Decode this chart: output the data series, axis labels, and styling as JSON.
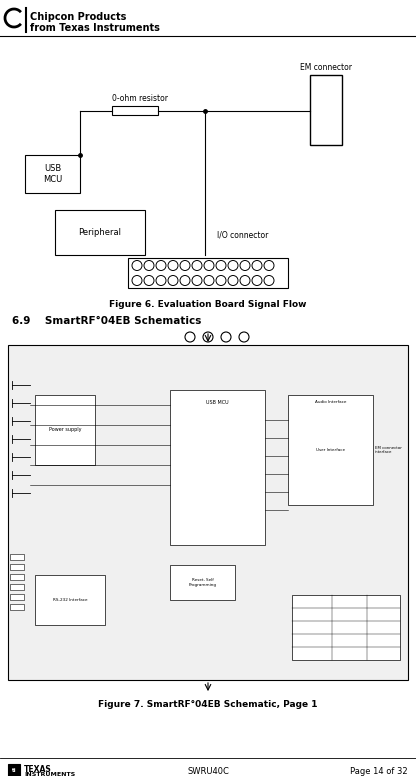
{
  "bg_color": "#ffffff",
  "header_logo_text1": "Chipcon Products",
  "header_logo_text2": "from Texas Instruments",
  "fig6_title": "Figure 6. Evaluation Board Signal Flow",
  "fig7_title": "Figure 7. SmartRF°04EB Schematic, Page 1",
  "section_title": "6.9    SmartRF°04EB Schematics",
  "footer_center": "SWRU40C",
  "footer_right": "Page 14 of 32",
  "em_connector_label": "EM connector",
  "resistor_label": "0-ohm resistor",
  "usb_mcu_label": "USB\nMCU",
  "peripheral_label": "Peripheral",
  "io_connector_label": "I/O connector"
}
